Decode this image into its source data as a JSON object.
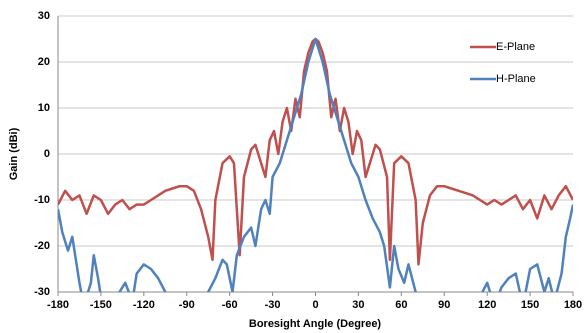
{
  "chart_data": {
    "type": "line",
    "x_label": "Boresight Angle (Degree)",
    "y_label": "Gain (dBi)",
    "xlim": [
      -180,
      180
    ],
    "ylim": [
      -30,
      30
    ],
    "xticks": [
      -180,
      -150,
      -120,
      -90,
      -60,
      -30,
      0,
      30,
      60,
      90,
      120,
      150,
      180
    ],
    "yticks": [
      -30,
      -20,
      -10,
      0,
      10,
      20,
      30
    ],
    "grid": true,
    "legend": "upper right",
    "series": [
      {
        "name": "E-Plane",
        "color": "#c0504d",
        "x": [
          -180,
          -175,
          -170,
          -165,
          -160,
          -155,
          -150,
          -145,
          -140,
          -135,
          -130,
          -125,
          -120,
          -115,
          -110,
          -105,
          -100,
          -95,
          -90,
          -85,
          -80,
          -75,
          -72,
          -70,
          -65,
          -60,
          -57,
          -53,
          -50,
          -45,
          -42,
          -38,
          -35,
          -32,
          -29,
          -26,
          -23,
          -20,
          -17,
          -14,
          -11,
          -8,
          -5,
          -2,
          0,
          2,
          5,
          8,
          11,
          14,
          17,
          20,
          23,
          26,
          29,
          32,
          35,
          38,
          42,
          45,
          50,
          52,
          55,
          60,
          65,
          70,
          72,
          75,
          80,
          85,
          90,
          95,
          100,
          105,
          110,
          115,
          120,
          125,
          130,
          135,
          140,
          145,
          150,
          155,
          160,
          165,
          170,
          175,
          180
        ],
        "values": [
          -11,
          -8,
          -10,
          -9,
          -13,
          -9,
          -10,
          -13,
          -11,
          -10,
          -12,
          -11,
          -11,
          -10,
          -9,
          -8,
          -7.5,
          -7,
          -7,
          -8,
          -12,
          -18,
          -23,
          -10,
          -2,
          -0.5,
          -2,
          -22,
          -5,
          1,
          2,
          -2,
          -5,
          3,
          5,
          0,
          7,
          10,
          5,
          12,
          8,
          18,
          22,
          24.5,
          25,
          24.5,
          22,
          18,
          8,
          12,
          5,
          10,
          7,
          0,
          5,
          3,
          -5,
          -2,
          2,
          1,
          -5,
          -23,
          -2,
          -0.5,
          -2,
          -10,
          -24,
          -15,
          -9,
          -7,
          -7,
          -7.5,
          -8,
          -8.5,
          -9,
          -10,
          -11,
          -10,
          -11,
          -10,
          -9,
          -12,
          -10,
          -14,
          -9,
          -12,
          -9,
          -7,
          -10
        ]
      },
      {
        "name": "H-Plane",
        "color": "#4f81bd",
        "x": [
          -180,
          -177,
          -173,
          -170,
          -165,
          -162,
          -157,
          -155,
          -152,
          -148,
          -140,
          -137,
          -133,
          -128,
          -125,
          -120,
          -115,
          -110,
          -105,
          -100,
          -90,
          -80,
          -75,
          -70,
          -65,
          -62,
          -58,
          -55,
          -50,
          -45,
          -42,
          -38,
          -35,
          -32,
          -30,
          -25,
          -20,
          -15,
          -10,
          -5,
          0,
          5,
          10,
          15,
          20,
          25,
          30,
          35,
          40,
          45,
          48,
          52,
          55,
          58,
          62,
          65,
          70,
          80,
          110,
          115,
          120,
          125,
          130,
          135,
          140,
          145,
          150,
          155,
          160,
          163,
          167,
          172,
          175,
          178,
          180
        ],
        "values": [
          -12,
          -17,
          -21,
          -18,
          -28,
          -33,
          -28,
          -22,
          -27,
          -35,
          -35,
          -30,
          -28,
          -32,
          -26,
          -24,
          -25,
          -27,
          -30,
          -35,
          -35,
          -33,
          -30,
          -27,
          -23,
          -24,
          -30,
          -22,
          -18,
          -16,
          -20,
          -12,
          -10,
          -13,
          -5,
          -2,
          3,
          8,
          13,
          20,
          25,
          20,
          13,
          8,
          3,
          -2,
          -5,
          -10,
          -14,
          -17,
          -20,
          -29,
          -20,
          -25,
          -28,
          -24,
          -30,
          -35,
          -35,
          -31,
          -28,
          -33,
          -29,
          -27,
          -26,
          -33,
          -25,
          -24,
          -30,
          -27,
          -32,
          -26,
          -18,
          -14,
          -11
        ]
      }
    ]
  }
}
